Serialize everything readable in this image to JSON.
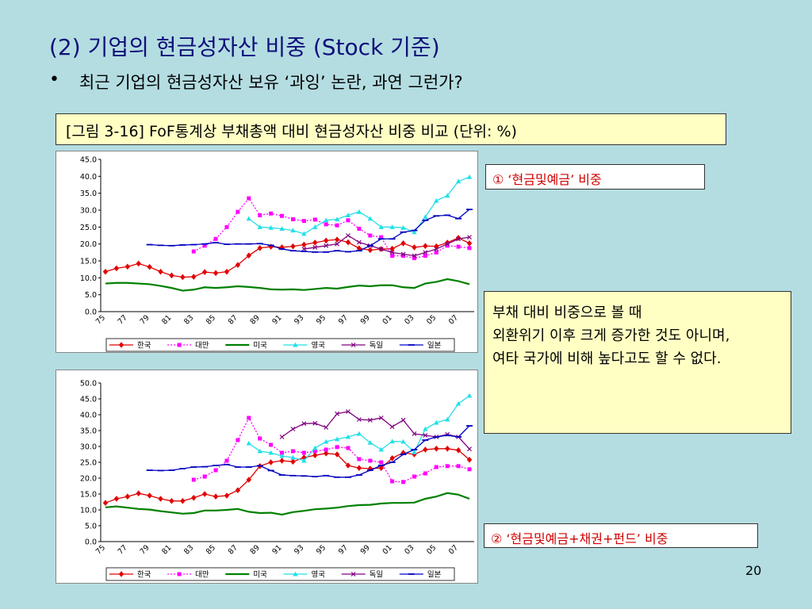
{
  "title": "(2) 기업의 현금성자산 비중 (Stock 기준)",
  "bullet_marker": "•",
  "bullet": "최근 기업의 현금성자산 보유 ‘과잉’ 논란, 과연 그런가?",
  "caption": "[그림 3-16] FoF통계상 부채총액 대비 현금성자산 비중 비교 (단위: %)",
  "label1": "① ‘현금및예금’ 비중",
  "note": [
    "부채 대비 비중으로 볼 때",
    "외환위기 이후 크게 증가한 것도 아니며,",
    "여타 국가에 비해 높다고도 할 수 없다."
  ],
  "label2": "② ‘현금및예금+채권+펀드’ 비중",
  "page_number": "20",
  "chart_data": [
    {
      "type": "line",
      "grid": false,
      "categories": [
        "75",
        null,
        "77",
        null,
        "79",
        null,
        "81",
        null,
        "83",
        null,
        "85",
        null,
        "87",
        null,
        "89",
        null,
        "91",
        null,
        "93",
        null,
        "95",
        null,
        "97",
        null,
        "99",
        null,
        "01",
        null,
        "03",
        null,
        "05",
        null,
        "07",
        null
      ],
      "ylim": [
        0,
        45
      ],
      "yticks": [
        {
          "value": 0,
          "label": "0.0"
        },
        {
          "value": 5,
          "label": "5.0"
        },
        {
          "value": 10,
          "label": "10.0"
        },
        {
          "value": 15,
          "label": "15.0"
        },
        {
          "value": 20,
          "label": "20.0"
        },
        {
          "value": 25,
          "label": "25.0"
        },
        {
          "value": 30,
          "label": "30.0"
        },
        {
          "value": 35,
          "label": "35.0"
        },
        {
          "value": 40,
          "label": "40.0"
        },
        {
          "value": 45,
          "label": "45.0"
        }
      ],
      "series": [
        {
          "name": "한국",
          "color": "#e00000",
          "marker": "diamond",
          "dash": "solid",
          "values": [
            11.8,
            12.8,
            13.3,
            14.2,
            13.2,
            11.8,
            10.7,
            10.2,
            10.3,
            11.7,
            11.4,
            11.8,
            13.8,
            16.6,
            18.8,
            19.2,
            19.0,
            19.3,
            19.8,
            20.4,
            21.0,
            21.3,
            20.5,
            18.7,
            18.2,
            18.5,
            18.6,
            20.2,
            19.0,
            19.4,
            19.3,
            20.4,
            21.8,
            20.2
          ]
        },
        {
          "name": "대만",
          "color": "#ff00ff",
          "marker": "square",
          "dash": "dotted",
          "values": [
            null,
            null,
            null,
            null,
            null,
            null,
            null,
            null,
            17.8,
            19.5,
            21.5,
            25,
            29.5,
            33.5,
            28.5,
            29,
            28.3,
            27.3,
            26.8,
            27.2,
            25.8,
            25.5,
            27,
            24.5,
            22.5,
            22,
            16.5,
            16.5,
            15.8,
            16.5,
            17.5,
            19.5,
            19.2,
            18.8
          ]
        },
        {
          "name": "미국",
          "color": "#008000",
          "marker": "none",
          "dash": "solid",
          "values": [
            8.3,
            8.5,
            8.5,
            8.3,
            8.1,
            7.6,
            7.0,
            6.2,
            6.5,
            7.2,
            7.0,
            7.2,
            7.5,
            7.3,
            7.0,
            6.6,
            6.5,
            6.6,
            6.4,
            6.7,
            7.0,
            6.8,
            7.3,
            7.7,
            7.5,
            7.8,
            7.8,
            7.2,
            7.0,
            8.3,
            8.8,
            9.6,
            9.0,
            8.1
          ]
        },
        {
          "name": "영국",
          "color": "#22e0e8",
          "marker": "triangle",
          "dash": "solid",
          "values": [
            null,
            null,
            null,
            null,
            null,
            null,
            null,
            null,
            null,
            null,
            null,
            null,
            null,
            27.5,
            25,
            24.8,
            24.5,
            24,
            23,
            25,
            27,
            27.3,
            28.5,
            29.5,
            27.5,
            25,
            25,
            24.8,
            23.5,
            28,
            32.8,
            34.3,
            38.5,
            39.8
          ]
        },
        {
          "name": "독일",
          "color": "#800080",
          "marker": "x",
          "dash": "solid",
          "values": [
            null,
            null,
            null,
            null,
            null,
            null,
            null,
            null,
            null,
            null,
            null,
            null,
            null,
            null,
            null,
            null,
            null,
            null,
            18.5,
            19,
            19.5,
            20,
            22.5,
            20.5,
            19.5,
            18.5,
            17.5,
            17,
            16.5,
            17.5,
            18.5,
            20,
            21.5,
            22
          ]
        },
        {
          "name": "일본",
          "color": "#0000c0",
          "marker": "dash",
          "dash": "solid",
          "values": [
            null,
            null,
            null,
            null,
            19.8,
            19.6,
            19.5,
            19.7,
            19.8,
            20.0,
            20.4,
            19.9,
            20,
            20,
            20.1,
            19.6,
            18.5,
            18,
            17.8,
            17.6,
            17.6,
            18,
            17.7,
            18,
            19.5,
            21.5,
            21.5,
            23.5,
            24,
            27,
            28.3,
            28.5,
            27.5,
            30.2
          ]
        }
      ]
    },
    {
      "type": "line",
      "grid": false,
      "categories": [
        "75",
        null,
        "77",
        null,
        "79",
        null,
        "81",
        null,
        "83",
        null,
        "85",
        null,
        "87",
        null,
        "89",
        null,
        "91",
        null,
        "93",
        null,
        "95",
        null,
        "97",
        null,
        "99",
        null,
        "01",
        null,
        "03",
        null,
        "05",
        null,
        "07",
        null
      ],
      "ylim": [
        0,
        50
      ],
      "yticks": [
        {
          "value": 0,
          "label": "0.0"
        },
        {
          "value": 5,
          "label": "5.0"
        },
        {
          "value": 10,
          "label": "10.0"
        },
        {
          "value": 15,
          "label": "15.0"
        },
        {
          "value": 20,
          "label": "20.0"
        },
        {
          "value": 25,
          "label": "25.0"
        },
        {
          "value": 30,
          "label": "30.0"
        },
        {
          "value": 35,
          "label": "35.0"
        },
        {
          "value": 40,
          "label": "40.0"
        },
        {
          "value": 45,
          "label": "45.0"
        },
        {
          "value": 50,
          "label": "50.0"
        }
      ],
      "series": [
        {
          "name": "한국",
          "color": "#e00000",
          "marker": "diamond",
          "dash": "solid",
          "values": [
            12.2,
            13.5,
            14.2,
            15.2,
            14.5,
            13.5,
            12.8,
            12.8,
            13.8,
            15.0,
            14.2,
            14.5,
            16.2,
            19.5,
            23.8,
            25,
            25.5,
            25.2,
            26.5,
            27.2,
            27.8,
            27.5,
            24,
            23.2,
            23,
            23.2,
            26.3,
            28,
            27.5,
            29,
            29.3,
            29.3,
            28.8,
            25.8
          ]
        },
        {
          "name": "대만",
          "color": "#ff00ff",
          "marker": "square",
          "dash": "dotted",
          "values": [
            null,
            null,
            null,
            null,
            null,
            null,
            null,
            null,
            19.5,
            20.5,
            22.5,
            25.5,
            32,
            39,
            32.5,
            30.5,
            28,
            28.5,
            28,
            28.5,
            29,
            29.8,
            29.5,
            26,
            25.5,
            25,
            19,
            18.8,
            20.5,
            21.5,
            23.5,
            23.8,
            23.8,
            22.8
          ]
        },
        {
          "name": "미국",
          "color": "#008000",
          "marker": "none",
          "dash": "solid",
          "values": [
            10.8,
            11.1,
            10.7,
            10.3,
            10.1,
            9.6,
            9.2,
            8.8,
            9.0,
            9.8,
            9.8,
            10.0,
            10.3,
            9.4,
            9.0,
            9.1,
            8.5,
            9.3,
            9.7,
            10.2,
            10.4,
            10.7,
            11.2,
            11.5,
            11.6,
            12.0,
            12.2,
            12.2,
            12.3,
            13.5,
            14.2,
            15.3,
            14.8,
            13.5
          ]
        },
        {
          "name": "영국",
          "color": "#22e0e8",
          "marker": "triangle",
          "dash": "solid",
          "values": [
            null,
            null,
            null,
            null,
            null,
            null,
            null,
            null,
            null,
            null,
            null,
            null,
            null,
            31,
            28.5,
            28,
            27,
            26.5,
            25.5,
            29.5,
            31.5,
            32.3,
            33,
            34,
            31.2,
            29,
            31.6,
            31.5,
            28.2,
            35.5,
            37.5,
            38.5,
            43.5,
            46
          ]
        },
        {
          "name": "독일",
          "color": "#800080",
          "marker": "x",
          "dash": "solid",
          "values": [
            null,
            null,
            null,
            null,
            null,
            null,
            null,
            null,
            null,
            null,
            null,
            null,
            null,
            null,
            null,
            null,
            33,
            35.5,
            37.2,
            37.3,
            36,
            40.3,
            41,
            38.5,
            38.3,
            39,
            36.2,
            38.3,
            34,
            33.5,
            33,
            33.8,
            33,
            29.2
          ]
        },
        {
          "name": "일본",
          "color": "#0000c0",
          "marker": "dash",
          "dash": "solid",
          "values": [
            null,
            null,
            null,
            null,
            22.5,
            22.4,
            22.5,
            23,
            23.5,
            23.6,
            24,
            24.3,
            23.5,
            23.5,
            23.9,
            22.4,
            21,
            20.8,
            20.7,
            20.5,
            20.8,
            20.3,
            20.3,
            21,
            22.5,
            24,
            25,
            27.5,
            29,
            32,
            33,
            33.5,
            33,
            36.5
          ]
        }
      ]
    }
  ]
}
